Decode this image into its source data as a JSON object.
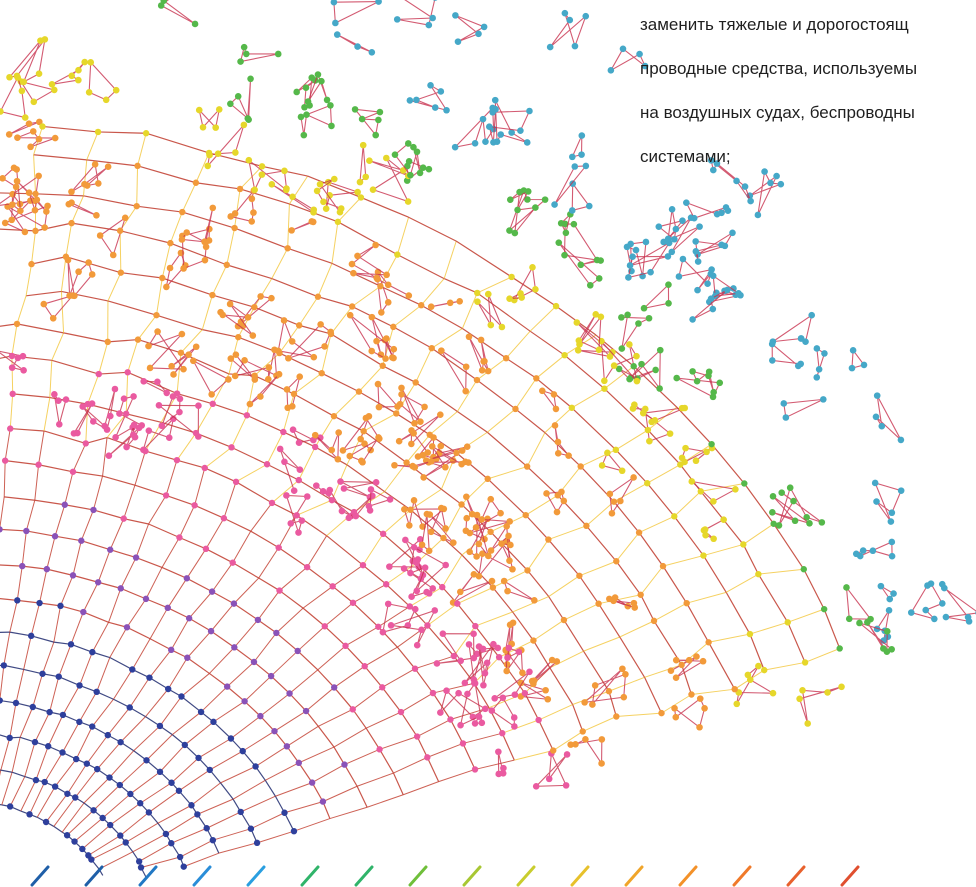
{
  "caption": {
    "lines": [
      "заменить тяжелые и дорогостоящ",
      "проводные средства, используемы",
      "на воздушных судах, беспроводны",
      "системами;"
    ]
  },
  "colors": {
    "far": "#45a8c8",
    "green": "#55b84a",
    "yellow": "#e6d72a",
    "orange": "#f29a3a",
    "pink": "#ea5aa0",
    "purple": "#8a52b8",
    "blue": "#2e3f9c",
    "grid_line": "#c0392b"
  },
  "bottom_dash_colors": [
    "#1f5fa8",
    "#1f5fa8",
    "#2178c4",
    "#2a8dd8",
    "#2a9fe0",
    "#30b46a",
    "#30b46a",
    "#6fbf3a",
    "#a8c733",
    "#c9cd2e",
    "#e7c12b",
    "#f0a52a",
    "#f39129",
    "#f07a2a",
    "#e8612d",
    "#e04f2f"
  ],
  "icons": {
    "background": "network-graph-illustration"
  }
}
